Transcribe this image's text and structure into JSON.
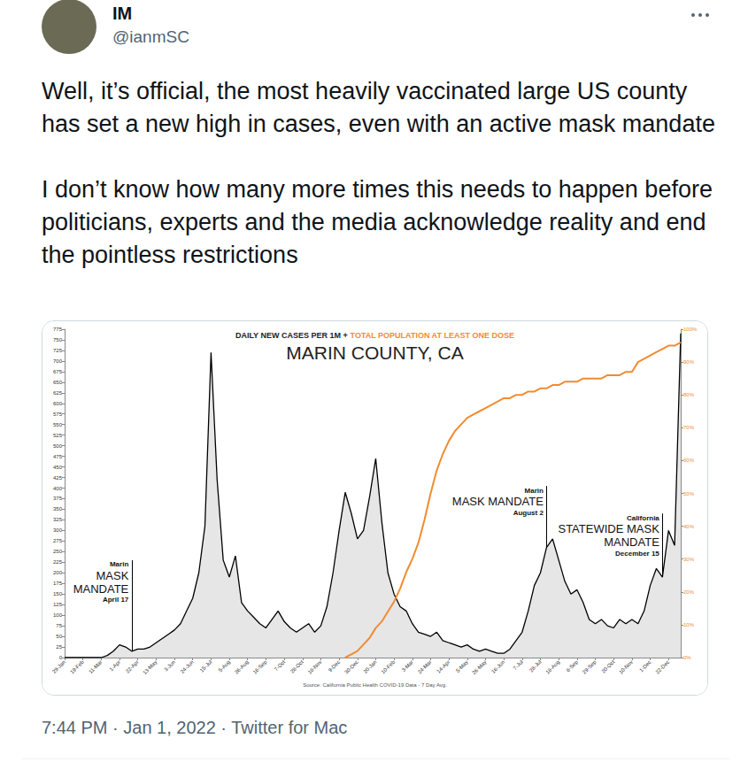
{
  "author": {
    "name": "IM",
    "handle": "@ianmSC"
  },
  "text": [
    "Well, it’s official, the most heavily vaccinated large US county has set a new high in cases, even with an active mask mandate",
    "I don’t know how many more times this needs to happen before politicians, experts and the media acknowledge reality and end the pointless restrictions"
  ],
  "timestamp": "7:44 PM · Jan 1, 2022 · Twitter for Mac",
  "chart_data": {
    "type": "line",
    "title": "MARIN COUNTY, CA",
    "subtitle": "DAILY NEW CASES PER 1M + TOTAL POPULATION AT LEAST ONE DOSE",
    "source": "Source: California Public Health COVID-19 Data - 7 Day Avg.",
    "categories": [
      "29-Jan",
      null,
      null,
      "19-Feb",
      null,
      null,
      "11-Mar",
      null,
      null,
      "1-Apr",
      null,
      null,
      "22-Apr",
      null,
      null,
      "13-May",
      null,
      null,
      "3-Jun",
      null,
      null,
      "24-Jun",
      null,
      null,
      "15-Jul",
      null,
      null,
      "5-Aug",
      null,
      null,
      "26-Aug",
      null,
      null,
      "16-Sep",
      null,
      null,
      "7-Oct",
      null,
      null,
      "28-Oct",
      null,
      null,
      "18-Nov",
      null,
      null,
      "9-Dec",
      null,
      null,
      "30-Dec",
      null,
      null,
      "20-Jan",
      null,
      null,
      "10-Feb",
      null,
      null,
      "3-Mar",
      null,
      null,
      "24-Mar",
      null,
      null,
      "14-Apr",
      null,
      null,
      "5-May",
      null,
      null,
      "26-May",
      null,
      null,
      "16-Jun",
      null,
      null,
      "7-Jul",
      null,
      null,
      "28-Jul",
      null,
      null,
      "18-Aug",
      null,
      null,
      "8-Sep",
      null,
      null,
      "29-Sep",
      null,
      null,
      "20-Oct",
      null,
      null,
      "10-Nov",
      null,
      null,
      "1-Dec",
      null,
      null,
      "22-Dec",
      null,
      null
    ],
    "series": [
      {
        "name": "DAILY NEW CASES PER 1M",
        "color": "#000000",
        "values": [
          0,
          0,
          0,
          0,
          0,
          0,
          0,
          5,
          15,
          30,
          25,
          15,
          20,
          20,
          25,
          35,
          45,
          55,
          65,
          80,
          110,
          140,
          200,
          310,
          720,
          420,
          230,
          190,
          240,
          130,
          110,
          95,
          80,
          70,
          90,
          110,
          85,
          70,
          60,
          70,
          80,
          60,
          75,
          120,
          200,
          300,
          390,
          340,
          280,
          300,
          380,
          470,
          320,
          200,
          150,
          120,
          110,
          80,
          60,
          55,
          50,
          60,
          40,
          35,
          30,
          25,
          30,
          20,
          15,
          20,
          15,
          10,
          10,
          20,
          40,
          60,
          110,
          170,
          200,
          260,
          280,
          230,
          180,
          150,
          160,
          130,
          90,
          80,
          90,
          75,
          70,
          90,
          80,
          90,
          80,
          110,
          170,
          210,
          190,
          300,
          265,
          765
        ]
      },
      {
        "name": "TOTAL POPULATION AT LEAST ONE DOSE",
        "color": "#f28b30",
        "axis": "y2",
        "values": [
          null,
          null,
          null,
          null,
          null,
          null,
          null,
          null,
          null,
          null,
          null,
          null,
          null,
          null,
          null,
          null,
          null,
          null,
          null,
          null,
          null,
          null,
          null,
          null,
          null,
          null,
          null,
          null,
          null,
          null,
          null,
          null,
          null,
          null,
          null,
          null,
          null,
          null,
          null,
          null,
          null,
          null,
          null,
          null,
          null,
          null,
          0,
          1,
          2,
          4,
          6,
          9,
          11,
          14,
          17,
          21,
          26,
          30,
          35,
          42,
          50,
          57,
          62,
          66,
          69,
          71,
          73,
          74,
          75,
          76,
          77,
          78,
          79,
          79,
          80,
          80,
          81,
          81,
          82,
          82,
          83,
          83,
          84,
          84,
          84,
          85,
          85,
          85,
          85,
          86,
          86,
          86,
          87,
          87,
          90,
          91,
          92,
          93,
          94,
          95,
          95,
          96
        ]
      }
    ],
    "ylim": [
      0,
      775
    ],
    "yticks": [
      0,
      25,
      50,
      75,
      100,
      125,
      150,
      175,
      200,
      225,
      250,
      275,
      300,
      325,
      350,
      375,
      400,
      425,
      450,
      475,
      500,
      525,
      550,
      575,
      600,
      625,
      650,
      675,
      700,
      725,
      750,
      775
    ],
    "y2lim": [
      0,
      100
    ],
    "y2ticks": [
      {
        "value": 0,
        "label": "0%"
      },
      {
        "value": 10,
        "label": "10%"
      },
      {
        "value": 20,
        "label": "20%"
      },
      {
        "value": 30,
        "label": "30%"
      },
      {
        "value": 40,
        "label": "40%"
      },
      {
        "value": 50,
        "label": "50%"
      },
      {
        "value": 60,
        "label": "60%"
      },
      {
        "value": 70,
        "label": "70%"
      },
      {
        "value": 80,
        "label": "80%"
      },
      {
        "value": 90,
        "label": "90%"
      },
      {
        "value": 100,
        "label": "100%"
      }
    ],
    "grid": false,
    "annotations": [
      {
        "above": "Marin",
        "lines": [
          "MASK",
          "MANDATE"
        ],
        "below": "April 17",
        "x": 11,
        "y": 230
      },
      {
        "above": "Marin",
        "lines": [
          "MASK MANDATE"
        ],
        "below": "August 2",
        "x": 79,
        "y": 405
      },
      {
        "above": "California",
        "lines": [
          "STATEWIDE MASK",
          "MANDATE"
        ],
        "below": "December 15",
        "x": 98,
        "y": 340
      }
    ]
  }
}
